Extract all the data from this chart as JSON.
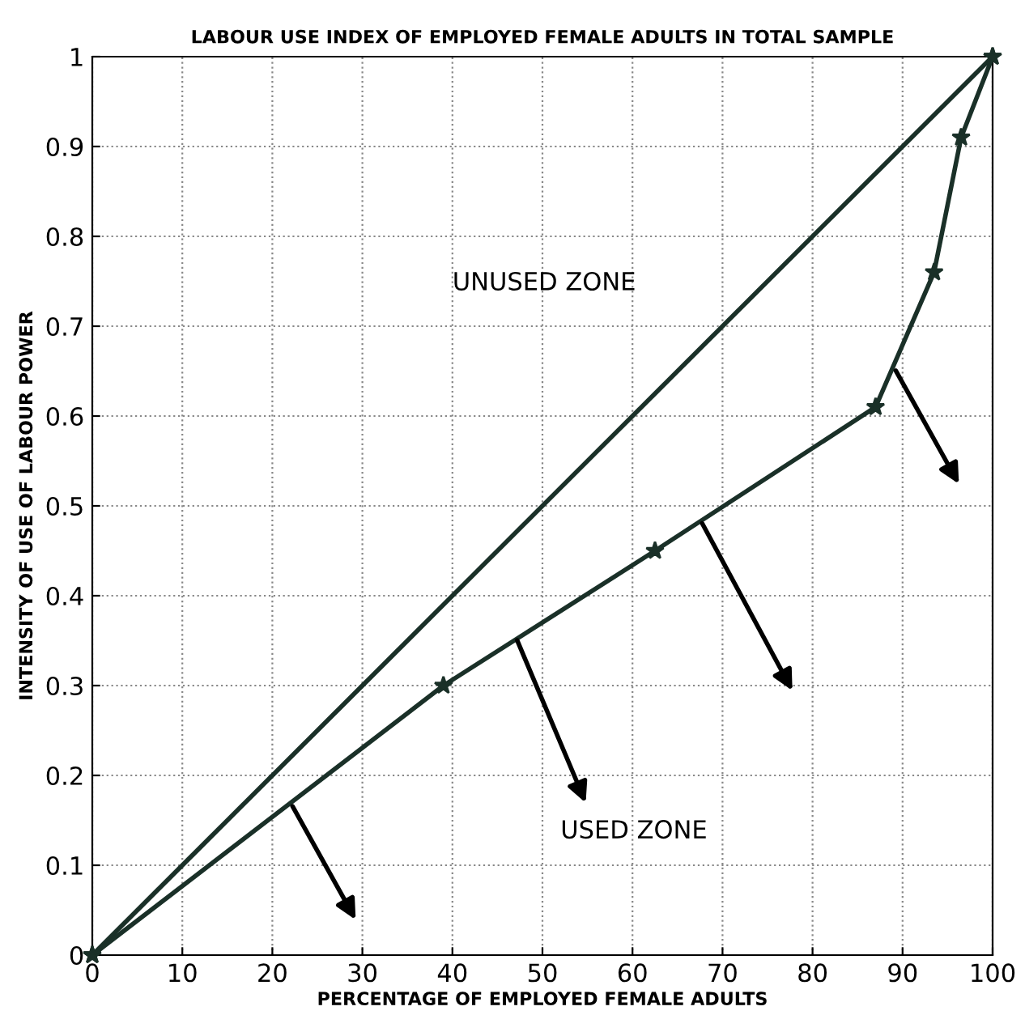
{
  "chart_data": {
    "type": "line",
    "title": "LABOUR USE INDEX OF EMPLOYED FEMALE ADULTS IN TOTAL SAMPLE",
    "xlabel": "PERCENTAGE OF EMPLOYED FEMALE ADULTS",
    "ylabel": "INTENSITY OF USE OF LABOUR POWER",
    "series": [
      {
        "color": "#1a3028",
        "x": [
          0,
          100
        ],
        "values": [
          0,
          1
        ],
        "marker": "star"
      },
      {
        "color": "#1a3028",
        "x": [
          0,
          39,
          62.5,
          87,
          93.5,
          96.5,
          100
        ],
        "values": [
          0,
          0.3,
          0.45,
          0.61,
          0.76,
          0.91,
          1
        ],
        "marker": "star"
      }
    ],
    "annotations": [
      "UNUSED ZONE",
      "USED ZONE"
    ],
    "xlim": [
      0,
      100
    ],
    "ylim": [
      0,
      1
    ],
    "xticks": [
      0,
      10,
      20,
      30,
      40,
      50,
      60,
      70,
      80,
      90,
      100
    ],
    "yticks": [
      0,
      0.1,
      0.2,
      0.3,
      0.4,
      0.5,
      0.6,
      0.7,
      0.8,
      0.9,
      1
    ],
    "grid": true
  }
}
